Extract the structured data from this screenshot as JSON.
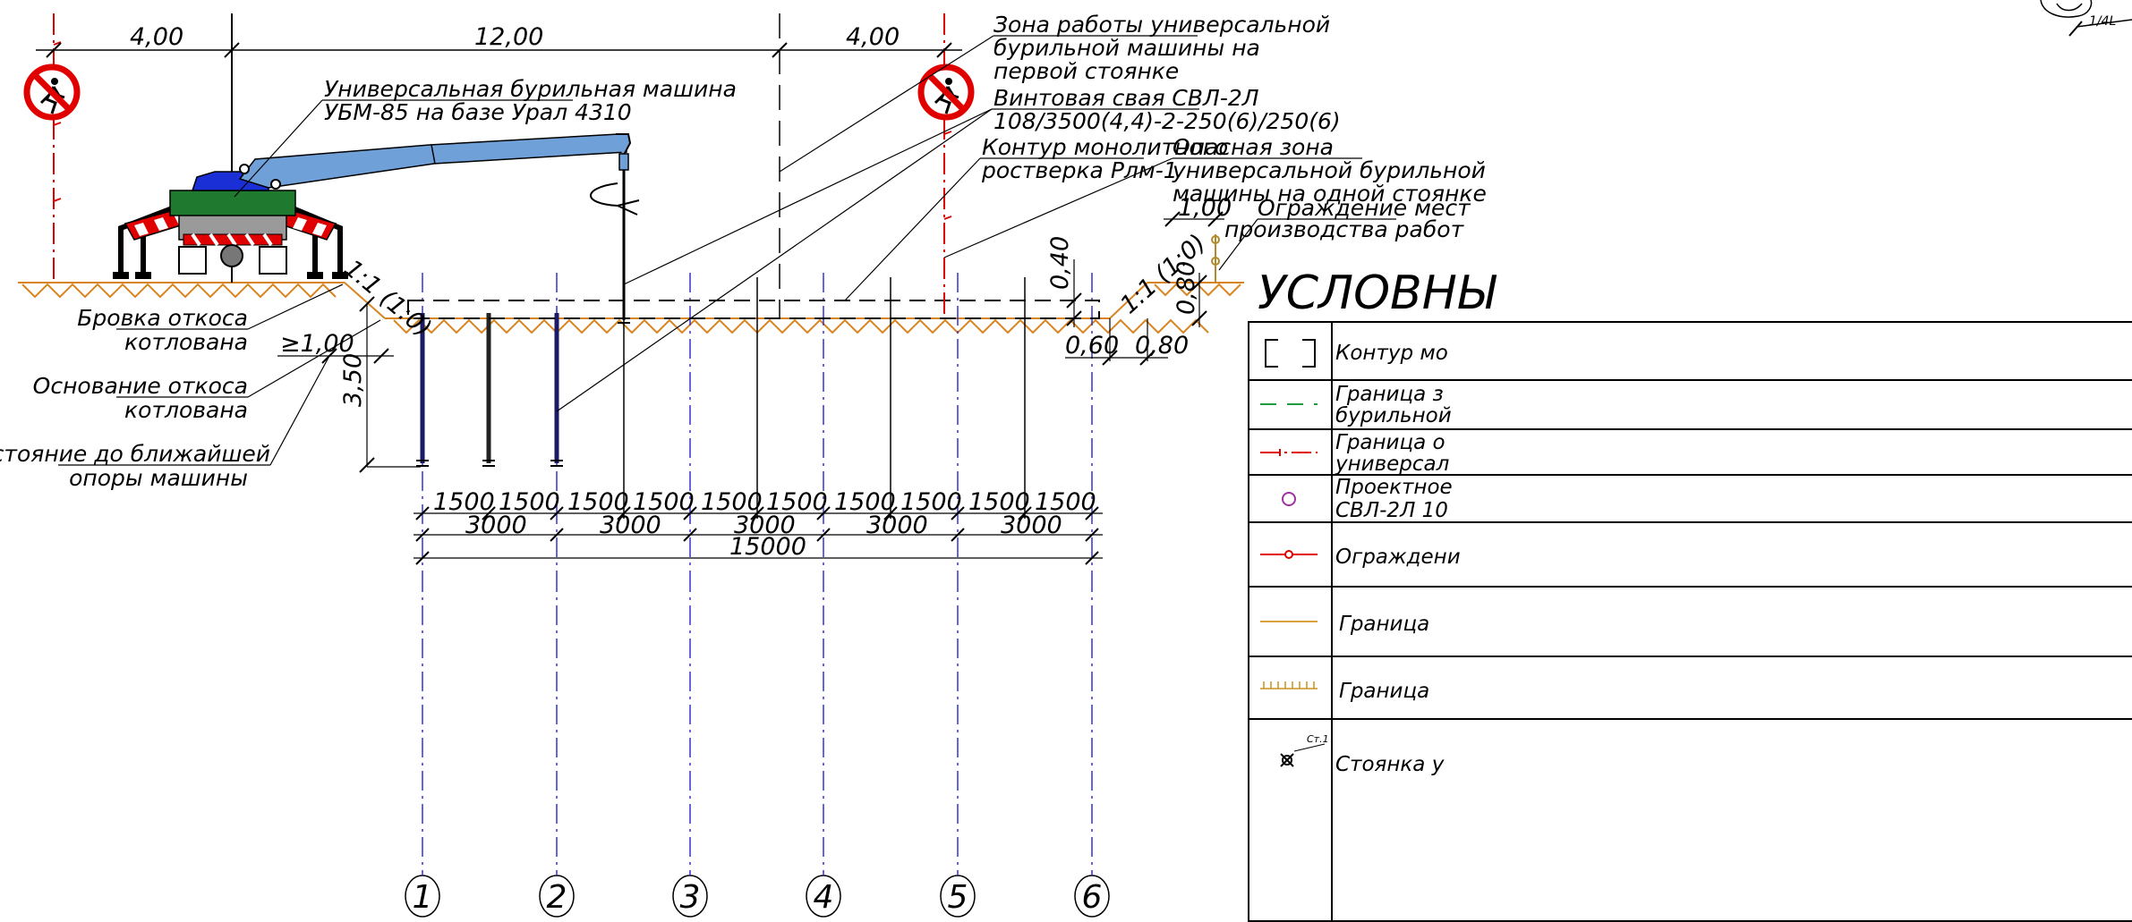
{
  "top_dims": [
    "4,00",
    "12,00",
    "4,00"
  ],
  "callouts": {
    "machine": [
      "Универсальная бурильная машина",
      "УБМ-85 на базе Урал 4310"
    ],
    "zone": [
      "Зона работы универсальной",
      "бурильной машины на",
      "первой стоянке"
    ],
    "pile": [
      "Винтовая свая СВЛ-2Л",
      "108/3500(4,4)-2-250(6)/250(6)"
    ],
    "contour": [
      "Контур монолитного",
      "ростверка Рлм-1"
    ],
    "danger": [
      "Опасная зона",
      "универсальной бурильной",
      "машины на одной стоянке"
    ],
    "fence": [
      "Ограждение мест",
      "производства работ"
    ],
    "brow": [
      "Бровка откоса",
      "котлована"
    ],
    "base": [
      "Основание откоса",
      "котлована"
    ],
    "distance": [
      "Расстояние до ближайшей",
      "опоры машины"
    ]
  },
  "slope_labels": [
    "1:1 (1:0)",
    "1:1 (1:0)"
  ],
  "side_dims": {
    "ge100": "≥1,00",
    "d350": "3,50",
    "d040": "0,40",
    "d080v": "0,80",
    "d060": "0,60",
    "d080h": "0,80",
    "d100": "1,00",
    "corner": "1/4L"
  },
  "spacing": {
    "half": [
      "1500",
      "1500",
      "1500",
      "1500",
      "1500",
      "1500",
      "1500",
      "1500",
      "1500",
      "1500"
    ],
    "full": [
      "3000",
      "3000",
      "3000",
      "3000",
      "3000"
    ],
    "total": "15000"
  },
  "axes": [
    "1",
    "2",
    "3",
    "4",
    "5",
    "6"
  ],
  "legend": {
    "title": "УСЛОВНЫ",
    "rows": [
      {
        "text": [
          "Контур мо"
        ]
      },
      {
        "text": [
          "Граница з",
          "бурильной"
        ]
      },
      {
        "text": [
          "Граница о",
          "универсал"
        ]
      },
      {
        "text": [
          "Проектное",
          "СВЛ-2Л 10"
        ]
      },
      {
        "text": [
          "Ограждени"
        ]
      },
      {
        "text": [
          "Граница"
        ]
      },
      {
        "text": [
          "Граница"
        ]
      },
      {
        "text": [
          "Стоянка у"
        ],
        "icon_label": "Ст.1"
      }
    ]
  },
  "colors": {
    "crane": "#6fa0d8",
    "cab": "#1a2fd6",
    "body": "#1f7a2f",
    "axis": "#3333cc",
    "danger": "#e00000",
    "soil": "#d9841f",
    "chassis": "#999999"
  }
}
